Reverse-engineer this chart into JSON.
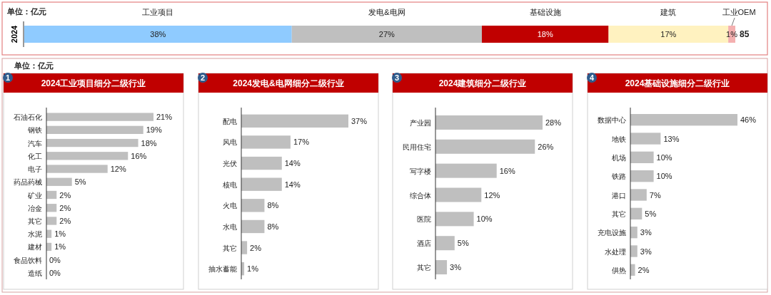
{
  "chart_data": [
    {
      "type": "bar",
      "orientation": "horizontal",
      "stacked": true,
      "categories": [
        "2024"
      ],
      "annotations": [
        "单位：亿元",
        "85"
      ],
      "series": [
        {
          "name": "工业项目",
          "color": "#8fcbff",
          "values": [
            38
          ],
          "value_labels": [
            "38%"
          ]
        },
        {
          "name": "发电&电网",
          "color": "#bfbfbf",
          "values": [
            27
          ],
          "value_labels": [
            "27%"
          ]
        },
        {
          "name": "基础设施",
          "color": "#c00000",
          "values": [
            18
          ],
          "value_labels": [
            "18%"
          ]
        },
        {
          "name": "建筑",
          "color": "#fff2c0",
          "values": [
            17
          ],
          "value_labels": [
            "17%"
          ]
        },
        {
          "name": "工业OEM",
          "color": "#f4b0b0",
          "values": [
            1
          ],
          "value_labels": [
            "1%"
          ]
        }
      ]
    },
    {
      "type": "bar",
      "orientation": "horizontal",
      "title": "2024工业项目细分二级行业",
      "annotations": [
        "单位：亿元",
        "1"
      ],
      "categories": [
        "石油石化",
        "钢铁",
        "汽车",
        "化工",
        "电子",
        "药品药械",
        "矿业",
        "冶金",
        "其它",
        "水泥",
        "建材",
        "食品饮料",
        "造纸"
      ],
      "series": [
        {
          "color": "#bfbfbf",
          "values": [
            21,
            19,
            18,
            16,
            12,
            5,
            2,
            2,
            2,
            1,
            1,
            0,
            0
          ],
          "value_labels": [
            "21%",
            "19%",
            "18%",
            "16%",
            "12%",
            "5%",
            "2%",
            "2%",
            "2%",
            "1%",
            "1%",
            "0%",
            "0%"
          ]
        }
      ]
    },
    {
      "type": "bar",
      "orientation": "horizontal",
      "title": "2024发电&电网细分二级行业",
      "annotations": [
        "2"
      ],
      "categories": [
        "配电",
        "风电",
        "光伏",
        "核电",
        "火电",
        "水电",
        "其它",
        "抽水蓄能"
      ],
      "series": [
        {
          "color": "#bfbfbf",
          "values": [
            37,
            17,
            14,
            14,
            8,
            8,
            2,
            1
          ],
          "value_labels": [
            "37%",
            "17%",
            "14%",
            "14%",
            "8%",
            "8%",
            "2%",
            "1%"
          ]
        }
      ]
    },
    {
      "type": "bar",
      "orientation": "horizontal",
      "title": "2024建筑细分二级行业",
      "annotations": [
        "3"
      ],
      "categories": [
        "产业园",
        "民用住宅",
        "写字楼",
        "综合体",
        "医院",
        "酒店",
        "其它"
      ],
      "series": [
        {
          "color": "#bfbfbf",
          "values": [
            28,
            26,
            16,
            12,
            10,
            5,
            3
          ],
          "value_labels": [
            "28%",
            "26%",
            "16%",
            "12%",
            "10%",
            "5%",
            "3%"
          ]
        }
      ]
    },
    {
      "type": "bar",
      "orientation": "horizontal",
      "title": "2024基础设施细分二级行业",
      "annotations": [
        "4"
      ],
      "categories": [
        "数据中心",
        "地铁",
        "机场",
        "铁路",
        "港口",
        "其它",
        "充电设施",
        "水处理",
        "供热"
      ],
      "series": [
        {
          "color": "#bfbfbf",
          "values": [
            46,
            13,
            10,
            10,
            7,
            5,
            3,
            3,
            2
          ],
          "value_labels": [
            "46%",
            "13%",
            "10%",
            "10%",
            "7%",
            "5%",
            "3%",
            "3%",
            "2%"
          ]
        }
      ]
    }
  ]
}
